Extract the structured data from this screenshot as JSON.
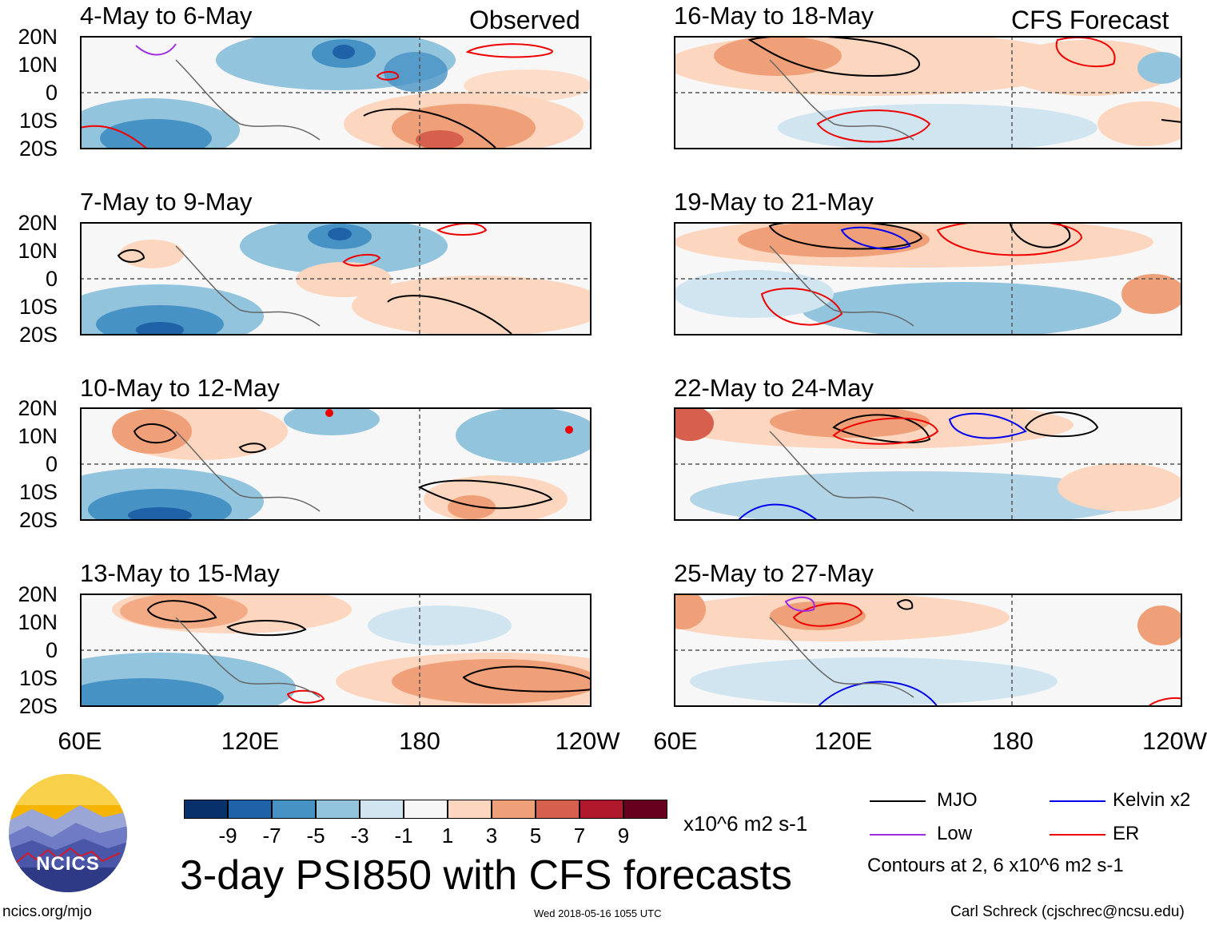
{
  "chart_data": {
    "type": "heatmap",
    "title": "3-day PSI850 with CFS forecasts",
    "units": "x10^6 m2 s-1",
    "contour_note": "Contours at 2, 6 x10^6 m2 s-1",
    "variable": "PSI850 streamfunction anomaly",
    "lat_range": [
      -20,
      20
    ],
    "lon_range": [
      "60E",
      "120W"
    ],
    "lat_ticks": [
      "20N",
      "10N",
      "0",
      "10S",
      "20S"
    ],
    "lon_ticks": [
      "60E",
      "120E",
      "180",
      "120W"
    ],
    "colorbar": {
      "levels": [
        "-9",
        "-7",
        "-5",
        "-3",
        "-1",
        "1",
        "3",
        "5",
        "7",
        "9"
      ],
      "colors": [
        "#08306b",
        "#1f62a8",
        "#4692c4",
        "#93c4de",
        "#d1e5f0",
        "#f7f7f7",
        "#fcd6be",
        "#f0a078",
        "#d6604d",
        "#b2182b",
        "#67001f"
      ]
    },
    "panels": [
      {
        "label": "4-May to 6-May",
        "tag": "Observed",
        "column": "left"
      },
      {
        "label": "7-May to 9-May",
        "tag": "",
        "column": "left"
      },
      {
        "label": "10-May to 12-May",
        "tag": "",
        "column": "left"
      },
      {
        "label": "13-May to 15-May",
        "tag": "",
        "column": "left"
      },
      {
        "label": "16-May to 18-May",
        "tag": "CFS Forecast",
        "column": "right"
      },
      {
        "label": "19-May to 21-May",
        "tag": "",
        "column": "right"
      },
      {
        "label": "22-May to 24-May",
        "tag": "",
        "column": "right"
      },
      {
        "label": "25-May to 27-May",
        "tag": "",
        "column": "right"
      }
    ],
    "legend": [
      {
        "label": "MJO",
        "color": "#000000"
      },
      {
        "label": "Kelvin x2",
        "color": "#0000ee"
      },
      {
        "label": "Low",
        "color": "#a02ce0"
      },
      {
        "label": "ER",
        "color": "#ee0000"
      }
    ]
  },
  "logo": {
    "text": "NCICS"
  },
  "footer": {
    "url": "ncics.org/mjo",
    "timestamp": "Wed 2018-05-16 1055 UTC",
    "author": "Carl Schreck (cjschrec@ncsu.edu)"
  }
}
